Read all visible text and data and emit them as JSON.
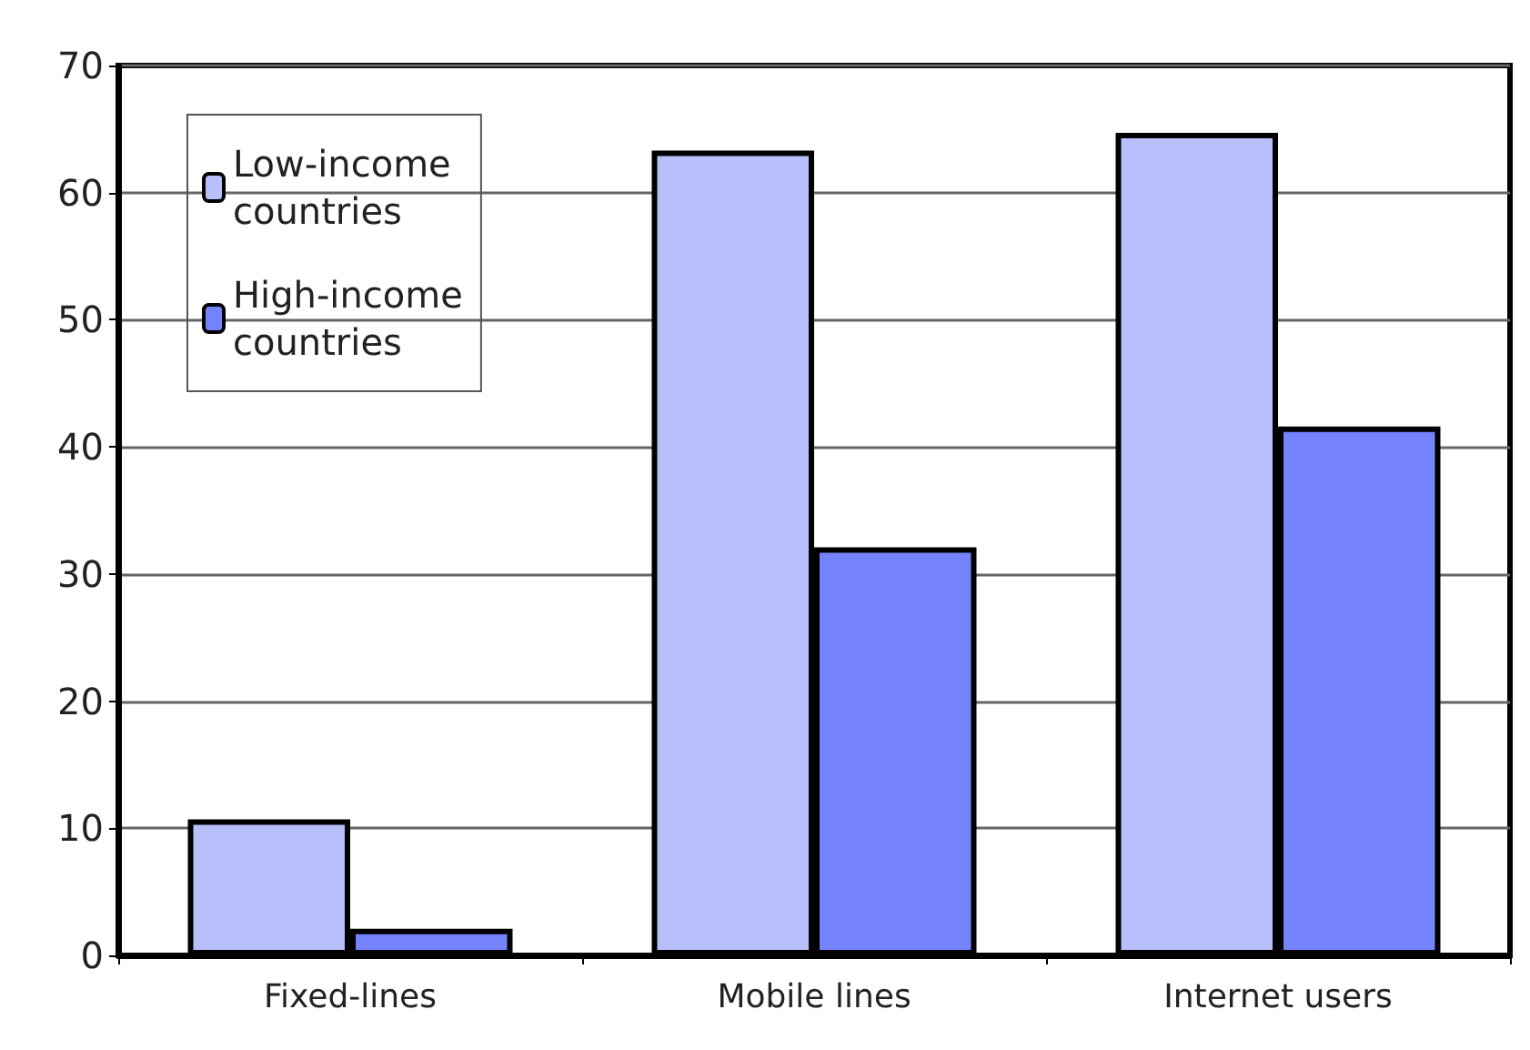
{
  "chart_data": {
    "type": "bar",
    "categories": [
      "Fixed-lines",
      "Mobile lines",
      "Internet users"
    ],
    "series": [
      {
        "name": "Low-income countries",
        "color": "#b8c0fc",
        "values": [
          10.7,
          63.3,
          64.7
        ]
      },
      {
        "name": "High-income countries",
        "color": "#7482fc",
        "values": [
          2.1,
          32.1,
          41.6
        ]
      }
    ],
    "ylim": [
      0,
      70
    ],
    "yticks": [
      0,
      10,
      20,
      30,
      40,
      50,
      60,
      70
    ],
    "grid": "y",
    "legend": "top left"
  }
}
